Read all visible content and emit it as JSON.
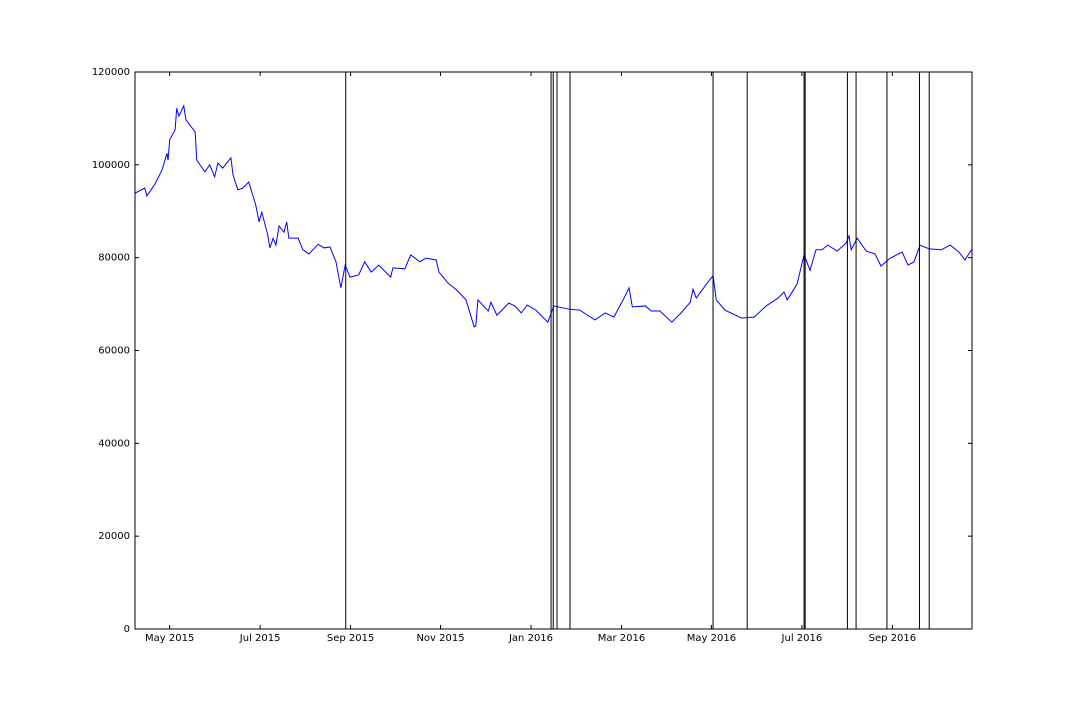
{
  "chart_data": {
    "type": "line",
    "x": [
      2015.269,
      2015.287,
      2015.291,
      2015.306,
      2015.319,
      2015.328,
      2015.33,
      2015.333,
      2015.343,
      2015.346,
      2015.35,
      2015.359,
      2015.363,
      2015.37,
      2015.38,
      2015.383,
      2015.398,
      2015.407,
      2015.416,
      2015.422,
      2015.431,
      2015.446,
      2015.45,
      2015.459,
      2015.468,
      2015.479,
      2015.492,
      2015.498,
      2015.503,
      2015.514,
      2015.518,
      2015.524,
      2015.529,
      2015.535,
      2015.544,
      2015.549,
      2015.553,
      2015.57,
      2015.579,
      2015.59,
      2015.607,
      2015.618,
      2015.629,
      2015.64,
      2015.649,
      2015.657,
      2015.666,
      2015.682,
      2015.693,
      2015.705,
      2015.719,
      2015.741,
      2015.745,
      2015.767,
      2015.778,
      2015.795,
      2015.806,
      2015.825,
      2015.83,
      2015.847,
      2015.863,
      2015.88,
      2015.895,
      2015.898,
      2015.902,
      2015.921,
      2015.926,
      2015.937,
      2015.959,
      2015.97,
      2015.982,
      2015.993,
      2016.009,
      2016.031,
      2016.042,
      2016.07,
      2016.09,
      2016.118,
      2016.137,
      2016.153,
      2016.17,
      2016.181,
      2016.187,
      2016.211,
      2016.222,
      2016.238,
      2016.26,
      2016.277,
      2016.294,
      2016.299,
      2016.305,
      2016.327,
      2016.336,
      2016.342,
      2016.358,
      2016.388,
      2016.412,
      2016.434,
      2016.456,
      2016.467,
      2016.473,
      2016.491,
      2016.504,
      2016.515,
      2016.526,
      2016.537,
      2016.548,
      2016.565,
      2016.582,
      2016.587,
      2016.591,
      2016.602,
      2016.619,
      2016.635,
      2016.646,
      2016.663,
      2016.685,
      2016.696,
      2016.707,
      2016.718,
      2016.735,
      2016.757,
      2016.774,
      2016.79,
      2016.801,
      2016.813
    ],
    "series": [
      {
        "color": "#0000ff",
        "values": [
          93900,
          95000,
          93300,
          95900,
          98900,
          102500,
          101000,
          105400,
          107500,
          112200,
          110500,
          112700,
          109700,
          108600,
          107100,
          101000,
          98500,
          100000,
          97400,
          100400,
          99300,
          101500,
          97800,
          94600,
          95000,
          96300,
          91300,
          87700,
          89800,
          84900,
          82100,
          84200,
          82700,
          86800,
          85500,
          87700,
          84200,
          84200,
          81700,
          80800,
          82900,
          82100,
          82300,
          79100,
          73500,
          78400,
          75800,
          76300,
          79100,
          76900,
          78400,
          75800,
          77800,
          77600,
          80600,
          79100,
          79900,
          79500,
          76900,
          74500,
          73000,
          70900,
          65100,
          65300,
          70900,
          68500,
          70400,
          67600,
          70200,
          69600,
          68100,
          69800,
          68700,
          66100,
          69600,
          68900,
          68700,
          66600,
          68100,
          67200,
          70900,
          73500,
          69400,
          69600,
          68500,
          68500,
          66100,
          68100,
          70400,
          73200,
          71300,
          74800,
          76100,
          70900,
          68700,
          67000,
          67200,
          69600,
          71300,
          72600,
          70900,
          74300,
          80600,
          77300,
          81700,
          81700,
          82700,
          81400,
          83200,
          84700,
          81700,
          84200,
          81400,
          80800,
          78200,
          79900,
          81200,
          78400,
          79100,
          82700,
          81900,
          81700,
          82700,
          81200,
          79500,
          81700
        ]
      }
    ],
    "vlines": [
      2015.658,
      2016.037,
      2016.041,
      2016.048,
      2016.072,
      2016.336,
      2016.399,
      2016.504,
      2016.506,
      2016.584,
      2016.6,
      2016.657,
      2016.717,
      2016.735
    ],
    "vline_color": "#000000",
    "xlim": [
      2015.269,
      2016.814
    ],
    "xticks": [
      {
        "value": 2015.333,
        "label": "May 2015"
      },
      {
        "value": 2015.5,
        "label": "Jul 2015"
      },
      {
        "value": 2015.667,
        "label": "Sep 2015"
      },
      {
        "value": 2015.833,
        "label": "Nov 2015"
      },
      {
        "value": 2016.0,
        "label": "Jan 2016"
      },
      {
        "value": 2016.167,
        "label": "Mar 2016"
      },
      {
        "value": 2016.333,
        "label": "May 2016"
      },
      {
        "value": 2016.5,
        "label": "Jul 2016"
      },
      {
        "value": 2016.667,
        "label": "Sep 2016"
      }
    ],
    "ylim": [
      0,
      120000
    ],
    "yticks": [
      0,
      20000,
      40000,
      60000,
      80000,
      100000,
      120000
    ]
  }
}
